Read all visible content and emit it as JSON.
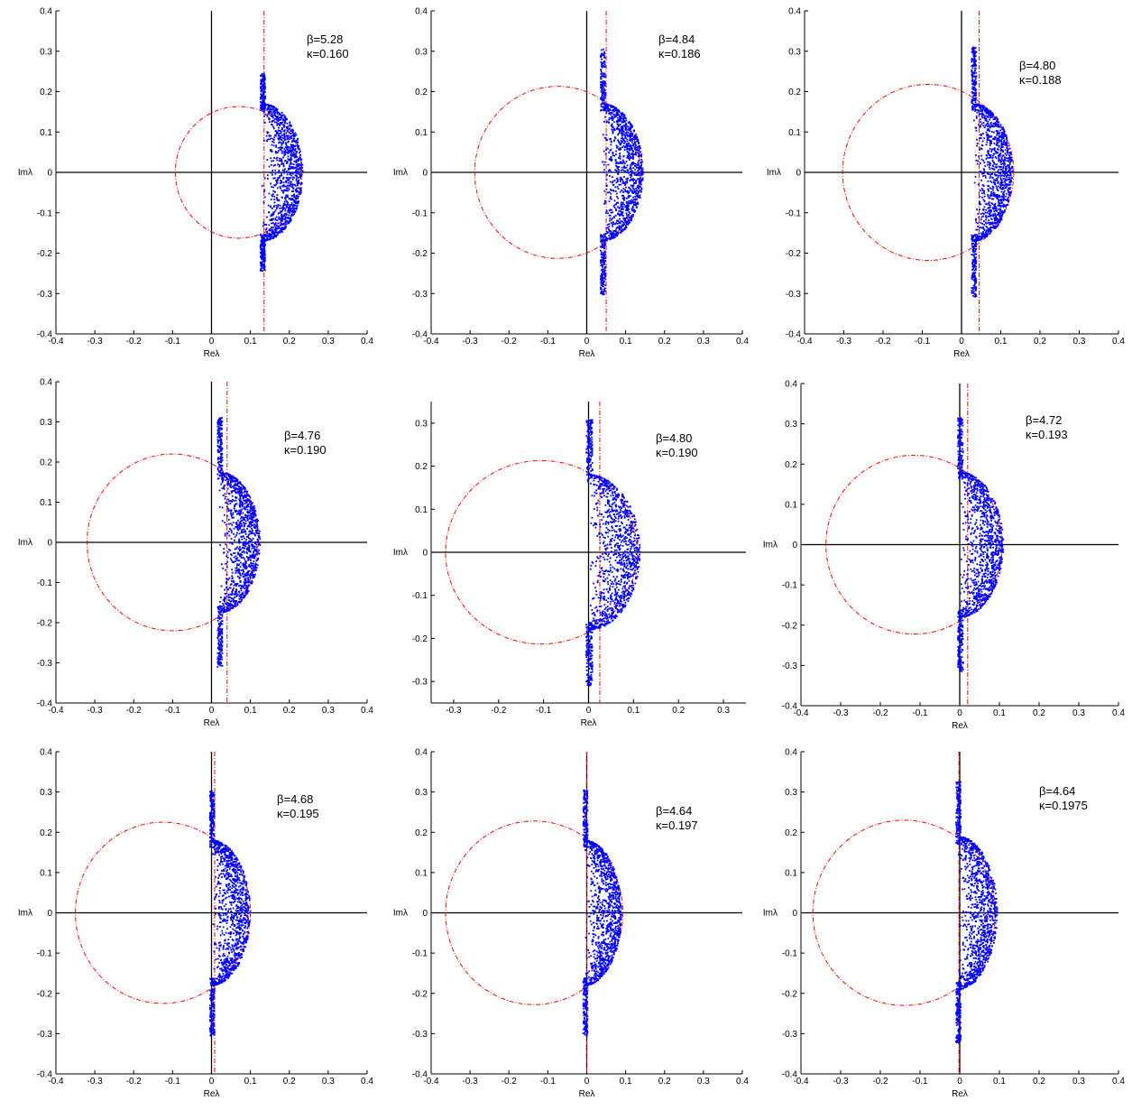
{
  "figure": {
    "xlabel": "Reλ",
    "ylabel": "Imλ",
    "colors": {
      "eigenvalues": "#0000ff",
      "circle": "#ff0000",
      "axes": "#000000"
    }
  },
  "chart_data": [
    {
      "type": "scatter",
      "xlim": [
        -0.4,
        0.4
      ],
      "ylim": [
        -0.4,
        0.4
      ],
      "xticks": [
        -0.4,
        -0.3,
        -0.2,
        -0.1,
        0,
        0.1,
        0.2,
        0.3,
        0.4
      ],
      "yticks": [
        -0.4,
        -0.3,
        -0.2,
        -0.1,
        0,
        0.1,
        0.2,
        0.3,
        0.4
      ],
      "xlabel": "Reλ",
      "ylabel": "Imλ",
      "annotation": [
        "β=5.28",
        "κ=0.160"
      ],
      "circle": {
        "center": [
          0.07,
          0
        ],
        "radius": 0.163
      },
      "dashed_vertical_line_x": 0.135,
      "eigenvalue_band": {
        "re_min": 0.13,
        "re_max": 0.235,
        "im_max": 0.245,
        "im_at_bulge": 0.17
      }
    },
    {
      "type": "scatter",
      "xlim": [
        -0.4,
        0.4
      ],
      "ylim": [
        -0.4,
        0.4
      ],
      "xticks": [
        -0.4,
        -0.3,
        -0.2,
        -0.1,
        0,
        0.1,
        0.2,
        0.3,
        0.4
      ],
      "yticks": [
        -0.4,
        -0.3,
        -0.2,
        -0.1,
        0,
        0.1,
        0.2,
        0.3,
        0.4
      ],
      "xlabel": "Reλ",
      "ylabel": "Imλ",
      "annotation": [
        "β=4.84",
        "κ=0.186"
      ],
      "circle": {
        "center": [
          -0.075,
          0
        ],
        "radius": 0.213
      },
      "dashed_vertical_line_x": 0.05,
      "eigenvalue_band": {
        "re_min": 0.04,
        "re_max": 0.145,
        "im_max": 0.305,
        "im_at_bulge": 0.17
      }
    },
    {
      "type": "scatter",
      "xlim": [
        -0.4,
        0.4
      ],
      "ylim": [
        -0.4,
        0.4
      ],
      "xticks": [
        -0.4,
        -0.3,
        -0.2,
        -0.1,
        0,
        0.1,
        0.2,
        0.3,
        0.4
      ],
      "yticks": [
        -0.4,
        -0.3,
        -0.2,
        -0.1,
        0,
        0.1,
        0.2,
        0.3,
        0.4
      ],
      "xlabel": "Reλ",
      "ylabel": "Imλ",
      "annotation": [
        "β=4.80",
        "κ=0.188"
      ],
      "circle": {
        "center": [
          -0.085,
          0
        ],
        "radius": 0.218
      },
      "dashed_vertical_line_x": 0.045,
      "eigenvalue_band": {
        "re_min": 0.03,
        "re_max": 0.13,
        "im_max": 0.31,
        "im_at_bulge": 0.17
      }
    },
    {
      "type": "scatter",
      "xlim": [
        -0.4,
        0.4
      ],
      "ylim": [
        -0.4,
        0.4
      ],
      "xticks": [
        -0.4,
        -0.3,
        -0.2,
        -0.1,
        0,
        0.1,
        0.2,
        0.3,
        0.4
      ],
      "yticks": [
        -0.4,
        -0.3,
        -0.2,
        -0.1,
        0,
        0.1,
        0.2,
        0.3,
        0.4
      ],
      "xlabel": "Reλ",
      "ylabel": "Imλ",
      "annotation": [
        "β=4.76",
        "κ=0.190"
      ],
      "circle": {
        "center": [
          -0.1,
          0
        ],
        "radius": 0.22
      },
      "dashed_vertical_line_x": 0.04,
      "eigenvalue_band": {
        "re_min": 0.02,
        "re_max": 0.125,
        "im_max": 0.31,
        "im_at_bulge": 0.175
      }
    },
    {
      "type": "scatter",
      "xlim": [
        -0.35,
        0.35
      ],
      "ylim": [
        -0.35,
        0.35
      ],
      "xticks": [
        -0.3,
        -0.2,
        -0.1,
        0,
        0.1,
        0.2,
        0.3
      ],
      "yticks": [
        -0.3,
        -0.2,
        -0.1,
        0,
        0.1,
        0.2,
        0.3
      ],
      "xlabel": "Reλ",
      "ylabel": "Imλ",
      "annotation": [
        "β=4.80",
        "κ=0.190"
      ],
      "circle": {
        "center": [
          -0.105,
          0
        ],
        "radius": 0.213
      },
      "dashed_vertical_line_x": 0.025,
      "eigenvalue_band": {
        "re_min": 0.0,
        "re_max": 0.115,
        "im_max": 0.31,
        "im_at_bulge": 0.18
      }
    },
    {
      "type": "scatter",
      "xlim": [
        -0.4,
        0.4
      ],
      "ylim": [
        -0.4,
        0.4
      ],
      "xticks": [
        -0.4,
        -0.3,
        -0.2,
        -0.1,
        0,
        0.1,
        0.2,
        0.3,
        0.4
      ],
      "yticks": [
        -0.4,
        -0.3,
        -0.2,
        -0.1,
        0,
        0.1,
        0.2,
        0.3,
        0.4
      ],
      "xlabel": "Reλ",
      "ylabel": "Imλ",
      "annotation": [
        "β=4.72",
        "κ=0.193"
      ],
      "circle": {
        "center": [
          -0.115,
          0
        ],
        "radius": 0.222
      },
      "dashed_vertical_line_x": 0.02,
      "eigenvalue_band": {
        "re_min": 0.0,
        "re_max": 0.11,
        "im_max": 0.315,
        "im_at_bulge": 0.18
      }
    },
    {
      "type": "scatter",
      "xlim": [
        -0.4,
        0.4
      ],
      "ylim": [
        -0.4,
        0.4
      ],
      "xticks": [
        -0.4,
        -0.3,
        -0.2,
        -0.1,
        0,
        0.1,
        0.2,
        0.3,
        0.4
      ],
      "yticks": [
        -0.4,
        -0.3,
        -0.2,
        -0.1,
        0,
        0.1,
        0.2,
        0.3,
        0.4
      ],
      "xlabel": "Reλ",
      "ylabel": "Imλ",
      "annotation": [
        "β=4.68",
        "κ=0.195"
      ],
      "circle": {
        "center": [
          -0.125,
          0
        ],
        "radius": 0.225
      },
      "dashed_vertical_line_x": 0.008,
      "eigenvalue_band": {
        "re_min": 0.0,
        "re_max": 0.1,
        "im_max": 0.305,
        "im_at_bulge": 0.18
      }
    },
    {
      "type": "scatter",
      "xlim": [
        -0.4,
        0.4
      ],
      "ylim": [
        -0.4,
        0.4
      ],
      "xticks": [
        -0.4,
        -0.3,
        -0.2,
        -0.1,
        0,
        0.1,
        0.2,
        0.3,
        0.4
      ],
      "yticks": [
        -0.4,
        -0.3,
        -0.2,
        -0.1,
        0,
        0.1,
        0.2,
        0.3,
        0.4
      ],
      "xlabel": "Reλ",
      "ylabel": "Imλ",
      "annotation": [
        "β=4.64",
        "κ=0.197"
      ],
      "circle": {
        "center": [
          -0.135,
          0
        ],
        "radius": 0.228
      },
      "dashed_vertical_line_x": 0.0,
      "eigenvalue_band": {
        "re_min": -0.005,
        "re_max": 0.09,
        "im_max": 0.305,
        "im_at_bulge": 0.18
      }
    },
    {
      "type": "scatter",
      "xlim": [
        -0.4,
        0.4
      ],
      "ylim": [
        -0.4,
        0.4
      ],
      "xticks": [
        -0.4,
        -0.3,
        -0.2,
        -0.1,
        0,
        0.1,
        0.2,
        0.3,
        0.4
      ],
      "yticks": [
        -0.4,
        -0.3,
        -0.2,
        -0.1,
        0,
        0.1,
        0.2,
        0.3,
        0.4
      ],
      "xlabel": "Reλ",
      "ylabel": "Imλ",
      "annotation": [
        "β=4.64",
        "κ=0.1975"
      ],
      "circle": {
        "center": [
          -0.14,
          0
        ],
        "radius": 0.23
      },
      "dashed_vertical_line_x": -0.002,
      "eigenvalue_band": {
        "re_min": -0.005,
        "re_max": 0.095,
        "im_max": 0.325,
        "im_at_bulge": 0.19
      }
    }
  ]
}
